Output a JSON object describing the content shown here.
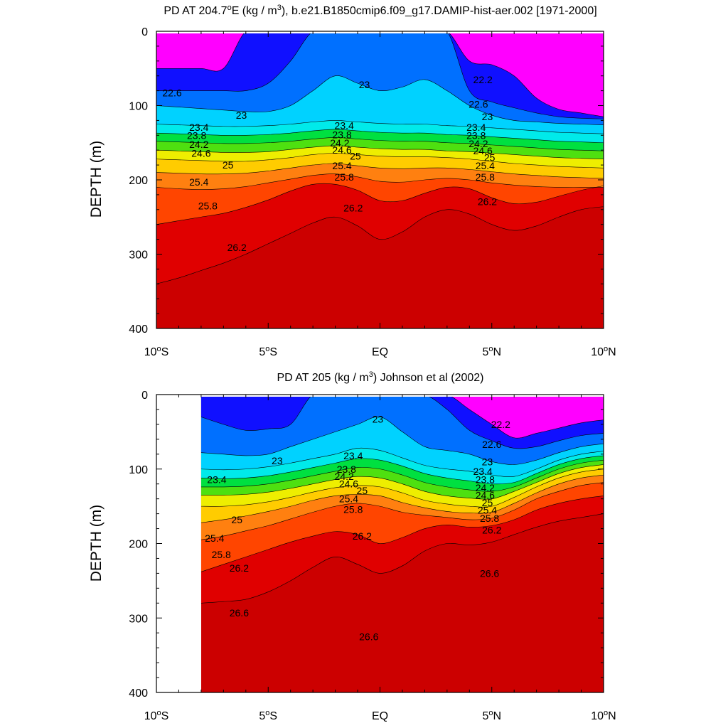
{
  "colors": {
    "fill_scale": [
      "#ff00ff",
      "#a000ff",
      "#1010ff",
      "#0070ff",
      "#1a9eff",
      "#00d2ff",
      "#00eaea",
      "#00e0a0",
      "#00e040",
      "#4ee010",
      "#a0ee00",
      "#eeee00",
      "#ffcc00",
      "#ffa020",
      "#ff8010",
      "#ff4500",
      "#ff0000",
      "#e00000",
      "#cc0000"
    ],
    "line": "#000000",
    "frame": "#000000"
  },
  "chart_data": [
    {
      "type": "contour",
      "title_pre": "PD AT 204.7",
      "title_deg": "o",
      "title_mid": "E (kg / m",
      "title_sup": "3",
      "title_post": "), b.e21.B1850cmip6.f09_g17.DAMIP-hist-aer.002 [1971-2000]",
      "ylabel": "DEPTH (m)",
      "xlabel": "",
      "x_range": [
        -10,
        10
      ],
      "y_range": [
        0,
        400
      ],
      "y_inverted": true,
      "x_ticks": [
        {
          "base": "10",
          "deg": "o",
          "hem": "S"
        },
        {
          "base": "5",
          "deg": "o",
          "hem": "S"
        },
        {
          "base": "EQ",
          "deg": "",
          "hem": ""
        },
        {
          "base": "5",
          "deg": "o",
          "hem": "N"
        },
        {
          "base": "10",
          "deg": "o",
          "hem": "N"
        }
      ],
      "y_ticks": [
        "0",
        "100",
        "200",
        "300",
        "400"
      ],
      "data_x_range": [
        -10,
        10
      ],
      "contour_levels": [
        22.2,
        22.6,
        23,
        23.4,
        23.8,
        24.2,
        24.6,
        25,
        25.4,
        25.8,
        26.2,
        26.6
      ],
      "contour_labels": [
        {
          "text": "22.6",
          "x": -9.3,
          "y": 83
        },
        {
          "text": "22.2",
          "x": 4.6,
          "y": 65
        },
        {
          "text": "23",
          "x": -6.2,
          "y": 113
        },
        {
          "text": "23",
          "x": -0.7,
          "y": 72
        },
        {
          "text": "22.6",
          "x": 4.4,
          "y": 98
        },
        {
          "text": "23",
          "x": 4.8,
          "y": 115
        },
        {
          "text": "23.4",
          "x": -8.1,
          "y": 129
        },
        {
          "text": "23.8",
          "x": -8.2,
          "y": 140
        },
        {
          "text": "24.2",
          "x": -8.1,
          "y": 152
        },
        {
          "text": "24.6",
          "x": -8.0,
          "y": 164
        },
        {
          "text": "23.4",
          "x": -1.6,
          "y": 127
        },
        {
          "text": "23.8",
          "x": -1.7,
          "y": 139
        },
        {
          "text": "24.2",
          "x": -1.8,
          "y": 150
        },
        {
          "text": "24.6",
          "x": -1.7,
          "y": 160
        },
        {
          "text": "25",
          "x": -1.1,
          "y": 168
        },
        {
          "text": "23.4",
          "x": 4.3,
          "y": 129
        },
        {
          "text": "23.8",
          "x": 4.3,
          "y": 140
        },
        {
          "text": "24.2",
          "x": 4.4,
          "y": 151
        },
        {
          "text": "24.6",
          "x": 4.6,
          "y": 161
        },
        {
          "text": "25",
          "x": 4.9,
          "y": 170
        },
        {
          "text": "25",
          "x": -6.8,
          "y": 180
        },
        {
          "text": "25.4",
          "x": -8.1,
          "y": 203
        },
        {
          "text": "25.4",
          "x": -1.7,
          "y": 181
        },
        {
          "text": "25.4",
          "x": 4.7,
          "y": 181
        },
        {
          "text": "25.8",
          "x": -7.7,
          "y": 235
        },
        {
          "text": "25.8",
          "x": -1.6,
          "y": 196
        },
        {
          "text": "25.8",
          "x": 4.7,
          "y": 196
        },
        {
          "text": "26.2",
          "x": -1.2,
          "y": 238
        },
        {
          "text": "26.2",
          "x": 4.8,
          "y": 229
        },
        {
          "text": "26.2",
          "x": -6.4,
          "y": 291
        }
      ],
      "lat": [
        -10,
        -9,
        -8,
        -7,
        -6,
        -5,
        -4,
        -3,
        -2,
        -1,
        0,
        1,
        2,
        3,
        4,
        5,
        6,
        7,
        8,
        9,
        10
      ],
      "isopycnal_depths": [
        {
          "level": 22.2,
          "depth": [
            50,
            50,
            50,
            50,
            null,
            null,
            null,
            null,
            null,
            null,
            null,
            null,
            null,
            null,
            40,
            45,
            60,
            90,
            105,
            110,
            115
          ]
        },
        {
          "level": 22.6,
          "depth": [
            80,
            80,
            80,
            80,
            80,
            70,
            40,
            null,
            null,
            null,
            null,
            null,
            null,
            null,
            80,
            95,
            103,
            110,
            115,
            117,
            118
          ]
        },
        {
          "level": 23.0,
          "depth": [
            100,
            102,
            104,
            106,
            108,
            108,
            100,
            80,
            60,
            70,
            80,
            75,
            65,
            80,
            100,
            113,
            120,
            122,
            124,
            125,
            126
          ]
        },
        {
          "level": 23.4,
          "depth": [
            125,
            126,
            127,
            128,
            128,
            127,
            125,
            122,
            120,
            122,
            124,
            125,
            125,
            127,
            128,
            130,
            132,
            134,
            136,
            137,
            138
          ]
        },
        {
          "level": 23.8,
          "depth": [
            137,
            138,
            139,
            140,
            140,
            139,
            137,
            134,
            132,
            134,
            136,
            137,
            137,
            139,
            140,
            142,
            144,
            146,
            148,
            149,
            150
          ]
        },
        {
          "level": 24.2,
          "depth": [
            148,
            149,
            150,
            151,
            151,
            150,
            148,
            145,
            143,
            145,
            147,
            148,
            148,
            150,
            151,
            153,
            155,
            157,
            159,
            160,
            161
          ]
        },
        {
          "level": 24.6,
          "depth": [
            160,
            161,
            162,
            163,
            163,
            162,
            159,
            156,
            154,
            156,
            158,
            159,
            159,
            161,
            162,
            164,
            166,
            168,
            170,
            171,
            172
          ]
        },
        {
          "level": 25.0,
          "depth": [
            172,
            173,
            174,
            175,
            175,
            173,
            170,
            166,
            164,
            166,
            168,
            169,
            169,
            170,
            172,
            175,
            178,
            180,
            182,
            183,
            184
          ]
        },
        {
          "level": 25.4,
          "depth": [
            190,
            191,
            192,
            192,
            191,
            188,
            184,
            180,
            178,
            181,
            184,
            185,
            184,
            184,
            186,
            189,
            192,
            194,
            196,
            197,
            198
          ]
        },
        {
          "level": 25.8,
          "depth": [
            210,
            212,
            213,
            212,
            209,
            204,
            199,
            194,
            192,
            196,
            202,
            203,
            200,
            198,
            200,
            204,
            207,
            209,
            210,
            210,
            210
          ]
        },
        {
          "level": 26.2,
          "depth": [
            260,
            255,
            250,
            245,
            237,
            227,
            215,
            206,
            206,
            214,
            228,
            228,
            218,
            210,
            212,
            224,
            232,
            230,
            222,
            214,
            208
          ]
        },
        {
          "level": 26.6,
          "depth": [
            340,
            332,
            322,
            312,
            300,
            286,
            272,
            258,
            250,
            262,
            280,
            270,
            250,
            240,
            246,
            260,
            268,
            262,
            250,
            240,
            236
          ]
        }
      ]
    },
    {
      "type": "contour",
      "title_pre": "PD AT 205 (kg / m",
      "title_deg": "",
      "title_mid": "",
      "title_sup": "3",
      "title_post": ") Johnson et al (2002)",
      "ylabel": "DEPTH (m)",
      "xlabel": "",
      "x_range": [
        -10,
        10
      ],
      "y_range": [
        0,
        400
      ],
      "y_inverted": true,
      "x_ticks": [
        {
          "base": "10",
          "deg": "o",
          "hem": "S"
        },
        {
          "base": "5",
          "deg": "o",
          "hem": "S"
        },
        {
          "base": "EQ",
          "deg": "",
          "hem": ""
        },
        {
          "base": "5",
          "deg": "o",
          "hem": "N"
        },
        {
          "base": "10",
          "deg": "o",
          "hem": "N"
        }
      ],
      "y_ticks": [
        "0",
        "100",
        "200",
        "300",
        "400"
      ],
      "data_x_range": [
        -8,
        10
      ],
      "contour_levels": [
        22.2,
        22.6,
        23,
        23.4,
        23.8,
        24.2,
        24.6,
        25,
        25.4,
        25.8,
        26.2,
        26.6
      ],
      "contour_labels": [
        {
          "text": "23",
          "x": -0.1,
          "y": 33
        },
        {
          "text": "22.2",
          "x": 5.4,
          "y": 40
        },
        {
          "text": "22.6",
          "x": 5.0,
          "y": 67
        },
        {
          "text": "23",
          "x": -4.6,
          "y": 89
        },
        {
          "text": "23.4",
          "x": -1.2,
          "y": 82
        },
        {
          "text": "23",
          "x": 4.8,
          "y": 90
        },
        {
          "text": "23.4",
          "x": -7.3,
          "y": 114
        },
        {
          "text": "23.8",
          "x": -1.5,
          "y": 100
        },
        {
          "text": "24.2",
          "x": -1.6,
          "y": 110
        },
        {
          "text": "24.6",
          "x": -1.4,
          "y": 120
        },
        {
          "text": "25",
          "x": -0.8,
          "y": 129
        },
        {
          "text": "25.4",
          "x": -1.4,
          "y": 140
        },
        {
          "text": "25.8",
          "x": -1.2,
          "y": 154
        },
        {
          "text": "23.4",
          "x": 4.6,
          "y": 103
        },
        {
          "text": "23.8",
          "x": 4.7,
          "y": 114
        },
        {
          "text": "24.2",
          "x": 4.7,
          "y": 125
        },
        {
          "text": "24.6",
          "x": 4.7,
          "y": 135
        },
        {
          "text": "25",
          "x": 4.8,
          "y": 145
        },
        {
          "text": "25.4",
          "x": 4.8,
          "y": 155
        },
        {
          "text": "25.8",
          "x": 4.9,
          "y": 166
        },
        {
          "text": "26.2",
          "x": 5.0,
          "y": 182
        },
        {
          "text": "25",
          "x": -6.4,
          "y": 168
        },
        {
          "text": "25.4",
          "x": -7.4,
          "y": 193
        },
        {
          "text": "25.8",
          "x": -7.1,
          "y": 215
        },
        {
          "text": "26.2",
          "x": -6.3,
          "y": 233
        },
        {
          "text": "26.2",
          "x": -0.8,
          "y": 190
        },
        {
          "text": "26.6",
          "x": 4.9,
          "y": 240
        },
        {
          "text": "26.6",
          "x": -6.3,
          "y": 293
        },
        {
          "text": "26.6",
          "x": -0.5,
          "y": 325
        }
      ],
      "lat": [
        -8,
        -7,
        -6,
        -5,
        -4,
        -3,
        -2,
        -1,
        0,
        1,
        2,
        3,
        4,
        5,
        6,
        7,
        8,
        9,
        10
      ],
      "isopycnal_depths": [
        {
          "level": 22.2,
          "depth": [
            null,
            null,
            null,
            null,
            null,
            null,
            null,
            null,
            null,
            null,
            null,
            null,
            20,
            40,
            58,
            52,
            45,
            38,
            34
          ]
        },
        {
          "level": 22.6,
          "depth": [
            30,
            40,
            48,
            46,
            40,
            null,
            null,
            null,
            null,
            null,
            null,
            20,
            48,
            62,
            72,
            70,
            62,
            55,
            52
          ]
        },
        {
          "level": 23.0,
          "depth": [
            78,
            80,
            82,
            80,
            70,
            60,
            50,
            40,
            30,
            50,
            70,
            75,
            80,
            90,
            94,
            88,
            78,
            70,
            66
          ]
        },
        {
          "level": 23.4,
          "depth": [
            100,
            101,
            100,
            97,
            92,
            86,
            80,
            72,
            75,
            85,
            95,
            100,
            103,
            108,
            110,
            100,
            88,
            80,
            76
          ]
        },
        {
          "level": 23.8,
          "depth": [
            112,
            113,
            112,
            109,
            104,
            98,
            92,
            86,
            88,
            96,
            106,
            112,
            116,
            120,
            118,
            106,
            94,
            86,
            82
          ]
        },
        {
          "level": 24.2,
          "depth": [
            124,
            124,
            123,
            120,
            115,
            109,
            103,
            98,
            100,
            108,
            118,
            124,
            128,
            130,
            124,
            112,
            100,
            92,
            88
          ]
        },
        {
          "level": 24.6,
          "depth": [
            135,
            135,
            134,
            131,
            126,
            120,
            114,
            110,
            112,
            120,
            130,
            136,
            139,
            140,
            130,
            118,
            106,
            98,
            94
          ]
        },
        {
          "level": 25.0,
          "depth": [
            150,
            150,
            148,
            144,
            138,
            131,
            125,
            122,
            124,
            132,
            142,
            147,
            150,
            150,
            138,
            124,
            112,
            104,
            100
          ]
        },
        {
          "level": 25.4,
          "depth": [
            172,
            168,
            163,
            157,
            150,
            142,
            136,
            134,
            136,
            145,
            152,
            157,
            159,
            158,
            146,
            132,
            120,
            112,
            108
          ]
        },
        {
          "level": 25.8,
          "depth": [
            195,
            190,
            183,
            176,
            167,
            158,
            150,
            146,
            150,
            158,
            162,
            165,
            168,
            166,
            155,
            140,
            130,
            122,
            118
          ]
        },
        {
          "level": 26.2,
          "depth": [
            238,
            228,
            218,
            208,
            198,
            190,
            184,
            188,
            200,
            192,
            180,
            175,
            178,
            176,
            168,
            155,
            146,
            140,
            136
          ]
        },
        {
          "level": 26.6,
          "depth": [
            280,
            278,
            275,
            265,
            250,
            232,
            218,
            228,
            240,
            230,
            210,
            200,
            202,
            198,
            188,
            178,
            170,
            165,
            160
          ]
        }
      ]
    }
  ]
}
